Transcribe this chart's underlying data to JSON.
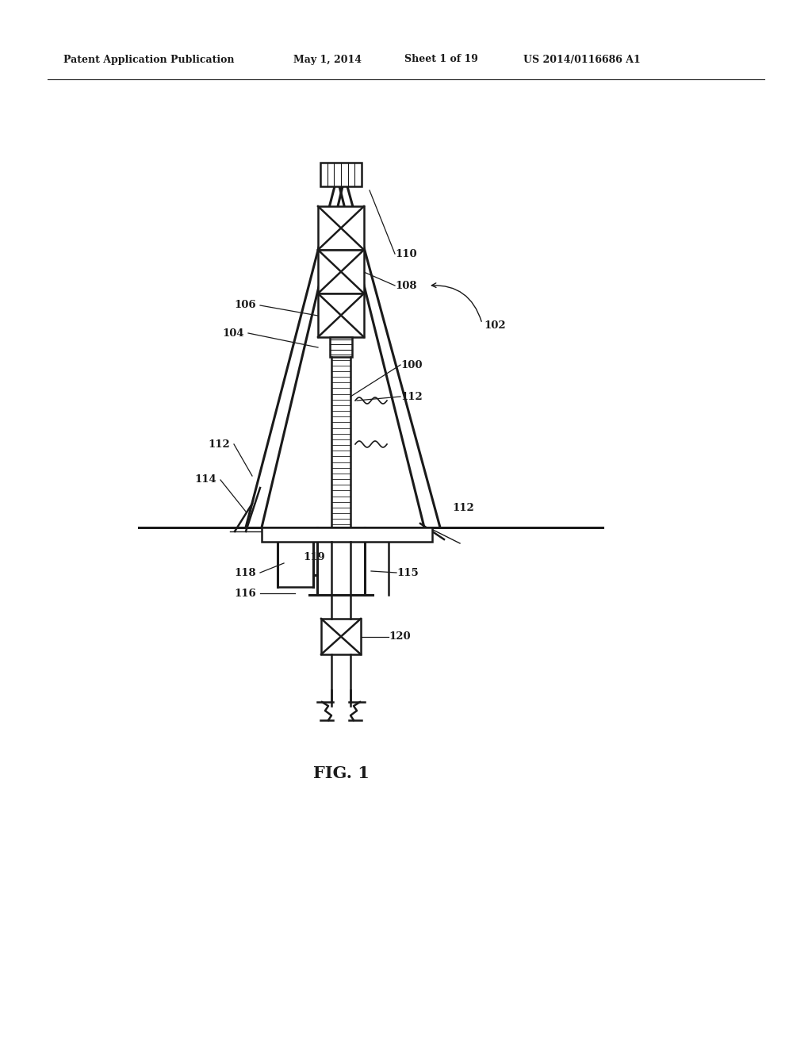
{
  "background_color": "#ffffff",
  "line_color": "#1a1a1a",
  "header_text": "Patent Application Publication",
  "header_date": "May 1, 2014",
  "header_sheet": "Sheet 1 of 19",
  "header_patent": "US 2014/0116686 A1",
  "fig_label": "FIG. 1"
}
